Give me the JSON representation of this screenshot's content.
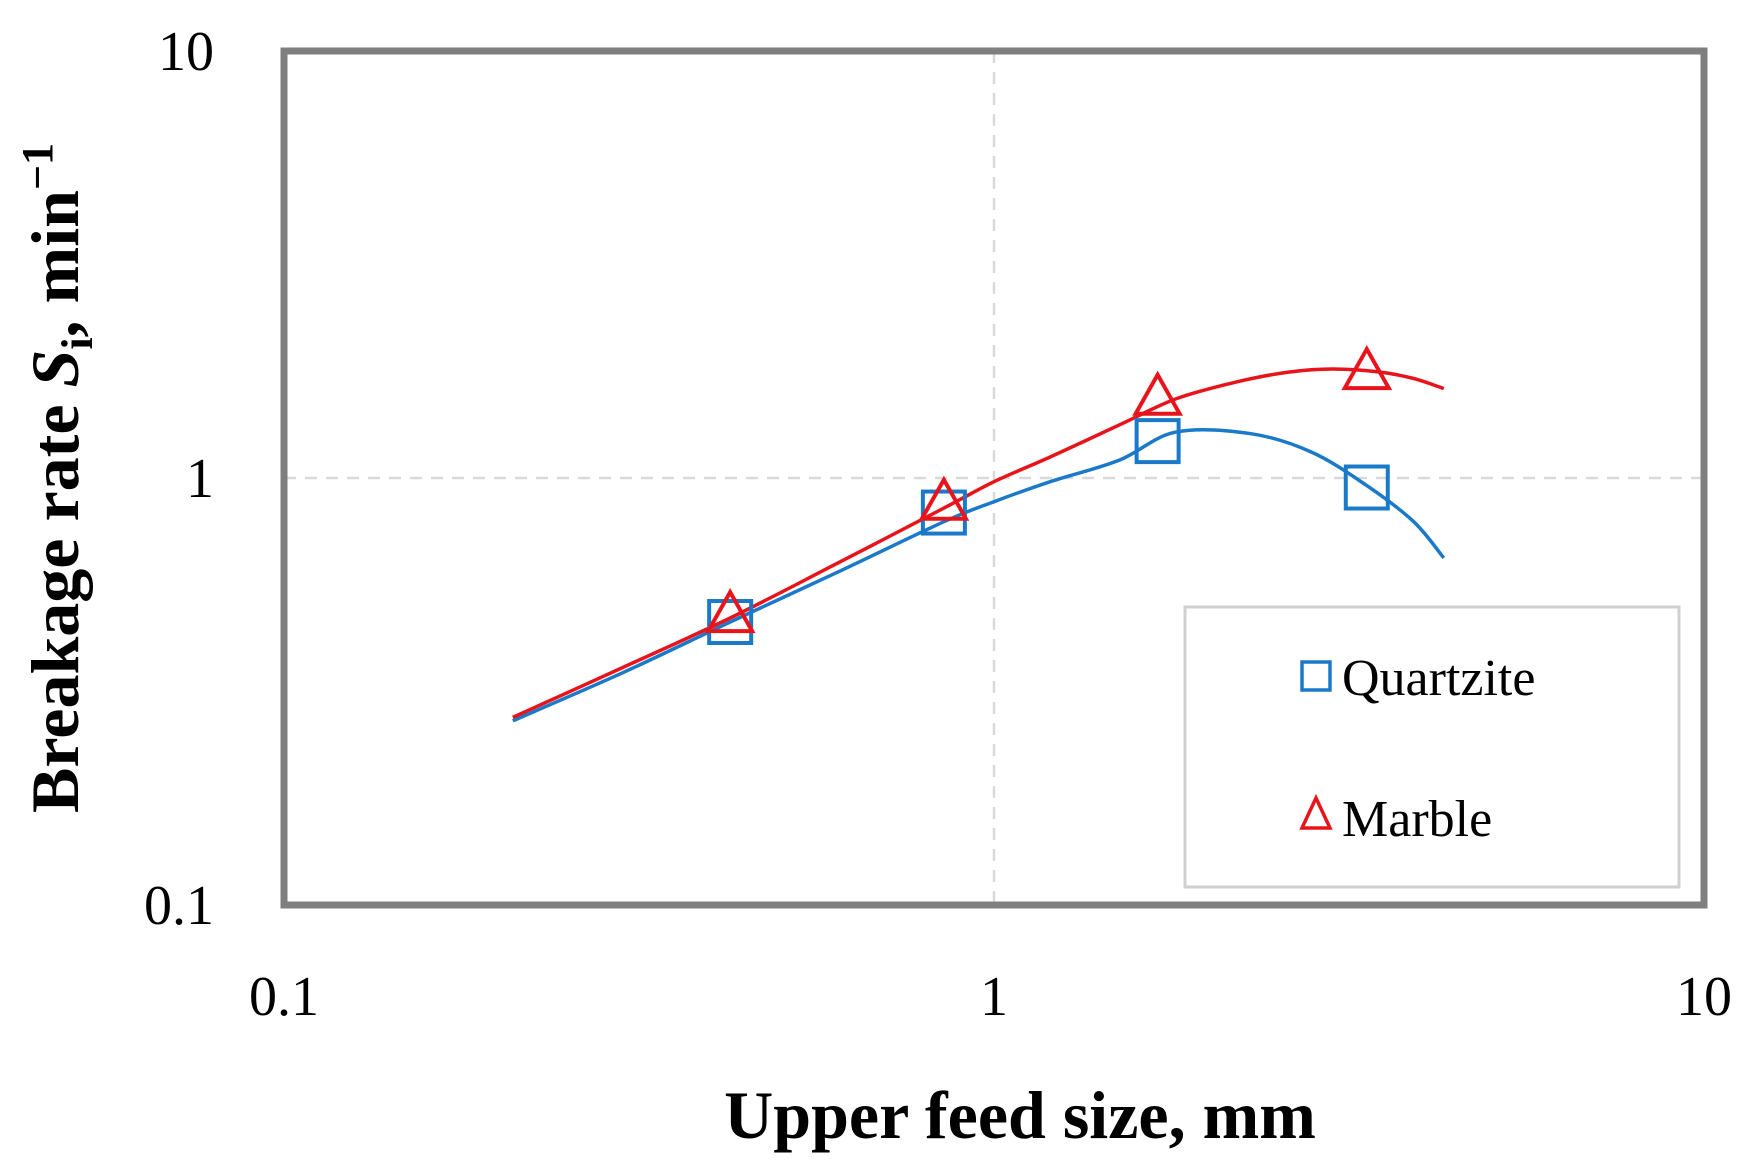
{
  "chart_data": {
    "type": "scatter",
    "xscale": "log",
    "yscale": "log",
    "xlim": [
      0.1,
      10
    ],
    "ylim": [
      0.1,
      10
    ],
    "xticks": [
      {
        "value": 0.1,
        "label": "0.1"
      },
      {
        "value": 1,
        "label": "1"
      },
      {
        "value": 10,
        "label": "10"
      }
    ],
    "yticks": [
      {
        "value": 0.1,
        "label": "0.1"
      },
      {
        "value": 1,
        "label": "1"
      },
      {
        "value": 10,
        "label": "10"
      }
    ],
    "xlabel": "Upper feed size, mm",
    "ylabel": {
      "prefix": "Breakage rate ",
      "symbol": "S",
      "subscript": "i",
      "suffix": ", min",
      "superscript": "−1"
    },
    "grid": true,
    "legend_position": "bottom-right",
    "series": [
      {
        "name": "Quartzite",
        "marker": "square",
        "color": "#1a7ac9",
        "points": [
          {
            "x": 0.425,
            "y": 0.46
          },
          {
            "x": 0.85,
            "y": 0.83
          },
          {
            "x": 1.7,
            "y": 1.22
          },
          {
            "x": 3.35,
            "y": 0.95
          }
        ],
        "fit": [
          {
            "x": 0.21,
            "y": 0.27
          },
          {
            "x": 0.3,
            "y": 0.35
          },
          {
            "x": 0.425,
            "y": 0.46
          },
          {
            "x": 0.6,
            "y": 0.6
          },
          {
            "x": 0.85,
            "y": 0.79
          },
          {
            "x": 1.0,
            "y": 0.88
          },
          {
            "x": 1.2,
            "y": 0.98
          },
          {
            "x": 1.5,
            "y": 1.1
          },
          {
            "x": 1.8,
            "y": 1.28
          },
          {
            "x": 2.3,
            "y": 1.27
          },
          {
            "x": 2.8,
            "y": 1.15
          },
          {
            "x": 3.35,
            "y": 0.96
          },
          {
            "x": 3.9,
            "y": 0.79
          },
          {
            "x": 4.3,
            "y": 0.65
          }
        ]
      },
      {
        "name": "Marble",
        "marker": "triangle",
        "color": "#e8141b",
        "points": [
          {
            "x": 0.425,
            "y": 0.48
          },
          {
            "x": 0.85,
            "y": 0.88
          },
          {
            "x": 1.7,
            "y": 1.55
          },
          {
            "x": 3.35,
            "y": 1.78
          }
        ],
        "fit": [
          {
            "x": 0.21,
            "y": 0.275
          },
          {
            "x": 0.3,
            "y": 0.36
          },
          {
            "x": 0.425,
            "y": 0.47
          },
          {
            "x": 0.6,
            "y": 0.63
          },
          {
            "x": 0.85,
            "y": 0.85
          },
          {
            "x": 1.0,
            "y": 0.98
          },
          {
            "x": 1.2,
            "y": 1.12
          },
          {
            "x": 1.5,
            "y": 1.33
          },
          {
            "x": 1.8,
            "y": 1.53
          },
          {
            "x": 2.2,
            "y": 1.68
          },
          {
            "x": 2.6,
            "y": 1.77
          },
          {
            "x": 3.0,
            "y": 1.8
          },
          {
            "x": 3.5,
            "y": 1.77
          },
          {
            "x": 3.9,
            "y": 1.71
          },
          {
            "x": 4.3,
            "y": 1.62
          }
        ]
      }
    ]
  }
}
